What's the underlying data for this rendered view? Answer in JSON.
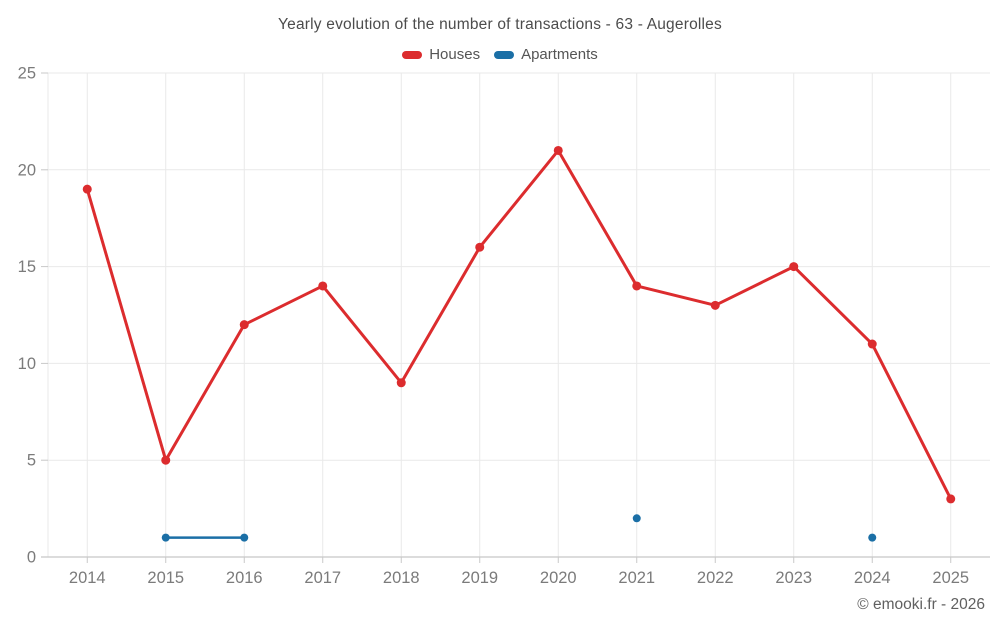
{
  "chart_data": {
    "type": "line",
    "title": "Yearly evolution of the number of transactions - 63 - Augerolles",
    "categories": [
      "2014",
      "2015",
      "2016",
      "2017",
      "2018",
      "2019",
      "2020",
      "2021",
      "2022",
      "2023",
      "2024",
      "2025"
    ],
    "series": [
      {
        "name": "Houses",
        "color": "#dc2c2e",
        "marker_radius": 4.5,
        "line_width": 3,
        "values": [
          19,
          5,
          12,
          14,
          9,
          16,
          21,
          14,
          13,
          15,
          11,
          3
        ]
      },
      {
        "name": "Apartments",
        "color": "#1b6fa6",
        "marker_radius": 4,
        "line_width": 2.5,
        "values": [
          null,
          1,
          1,
          null,
          null,
          null,
          null,
          2,
          null,
          null,
          1,
          null
        ]
      }
    ],
    "xlabel": "",
    "ylabel": "",
    "ylim": [
      0,
      25
    ],
    "y_ticks": [
      0,
      5,
      10,
      15,
      20,
      25
    ],
    "grid": true,
    "legend_position": "top",
    "colors": {
      "grid_line": "#e9e9e9",
      "axis_line": "#c8c8c8",
      "tick_label": "#7b7b7b"
    },
    "footer": "© emooki.fr - 2026"
  }
}
